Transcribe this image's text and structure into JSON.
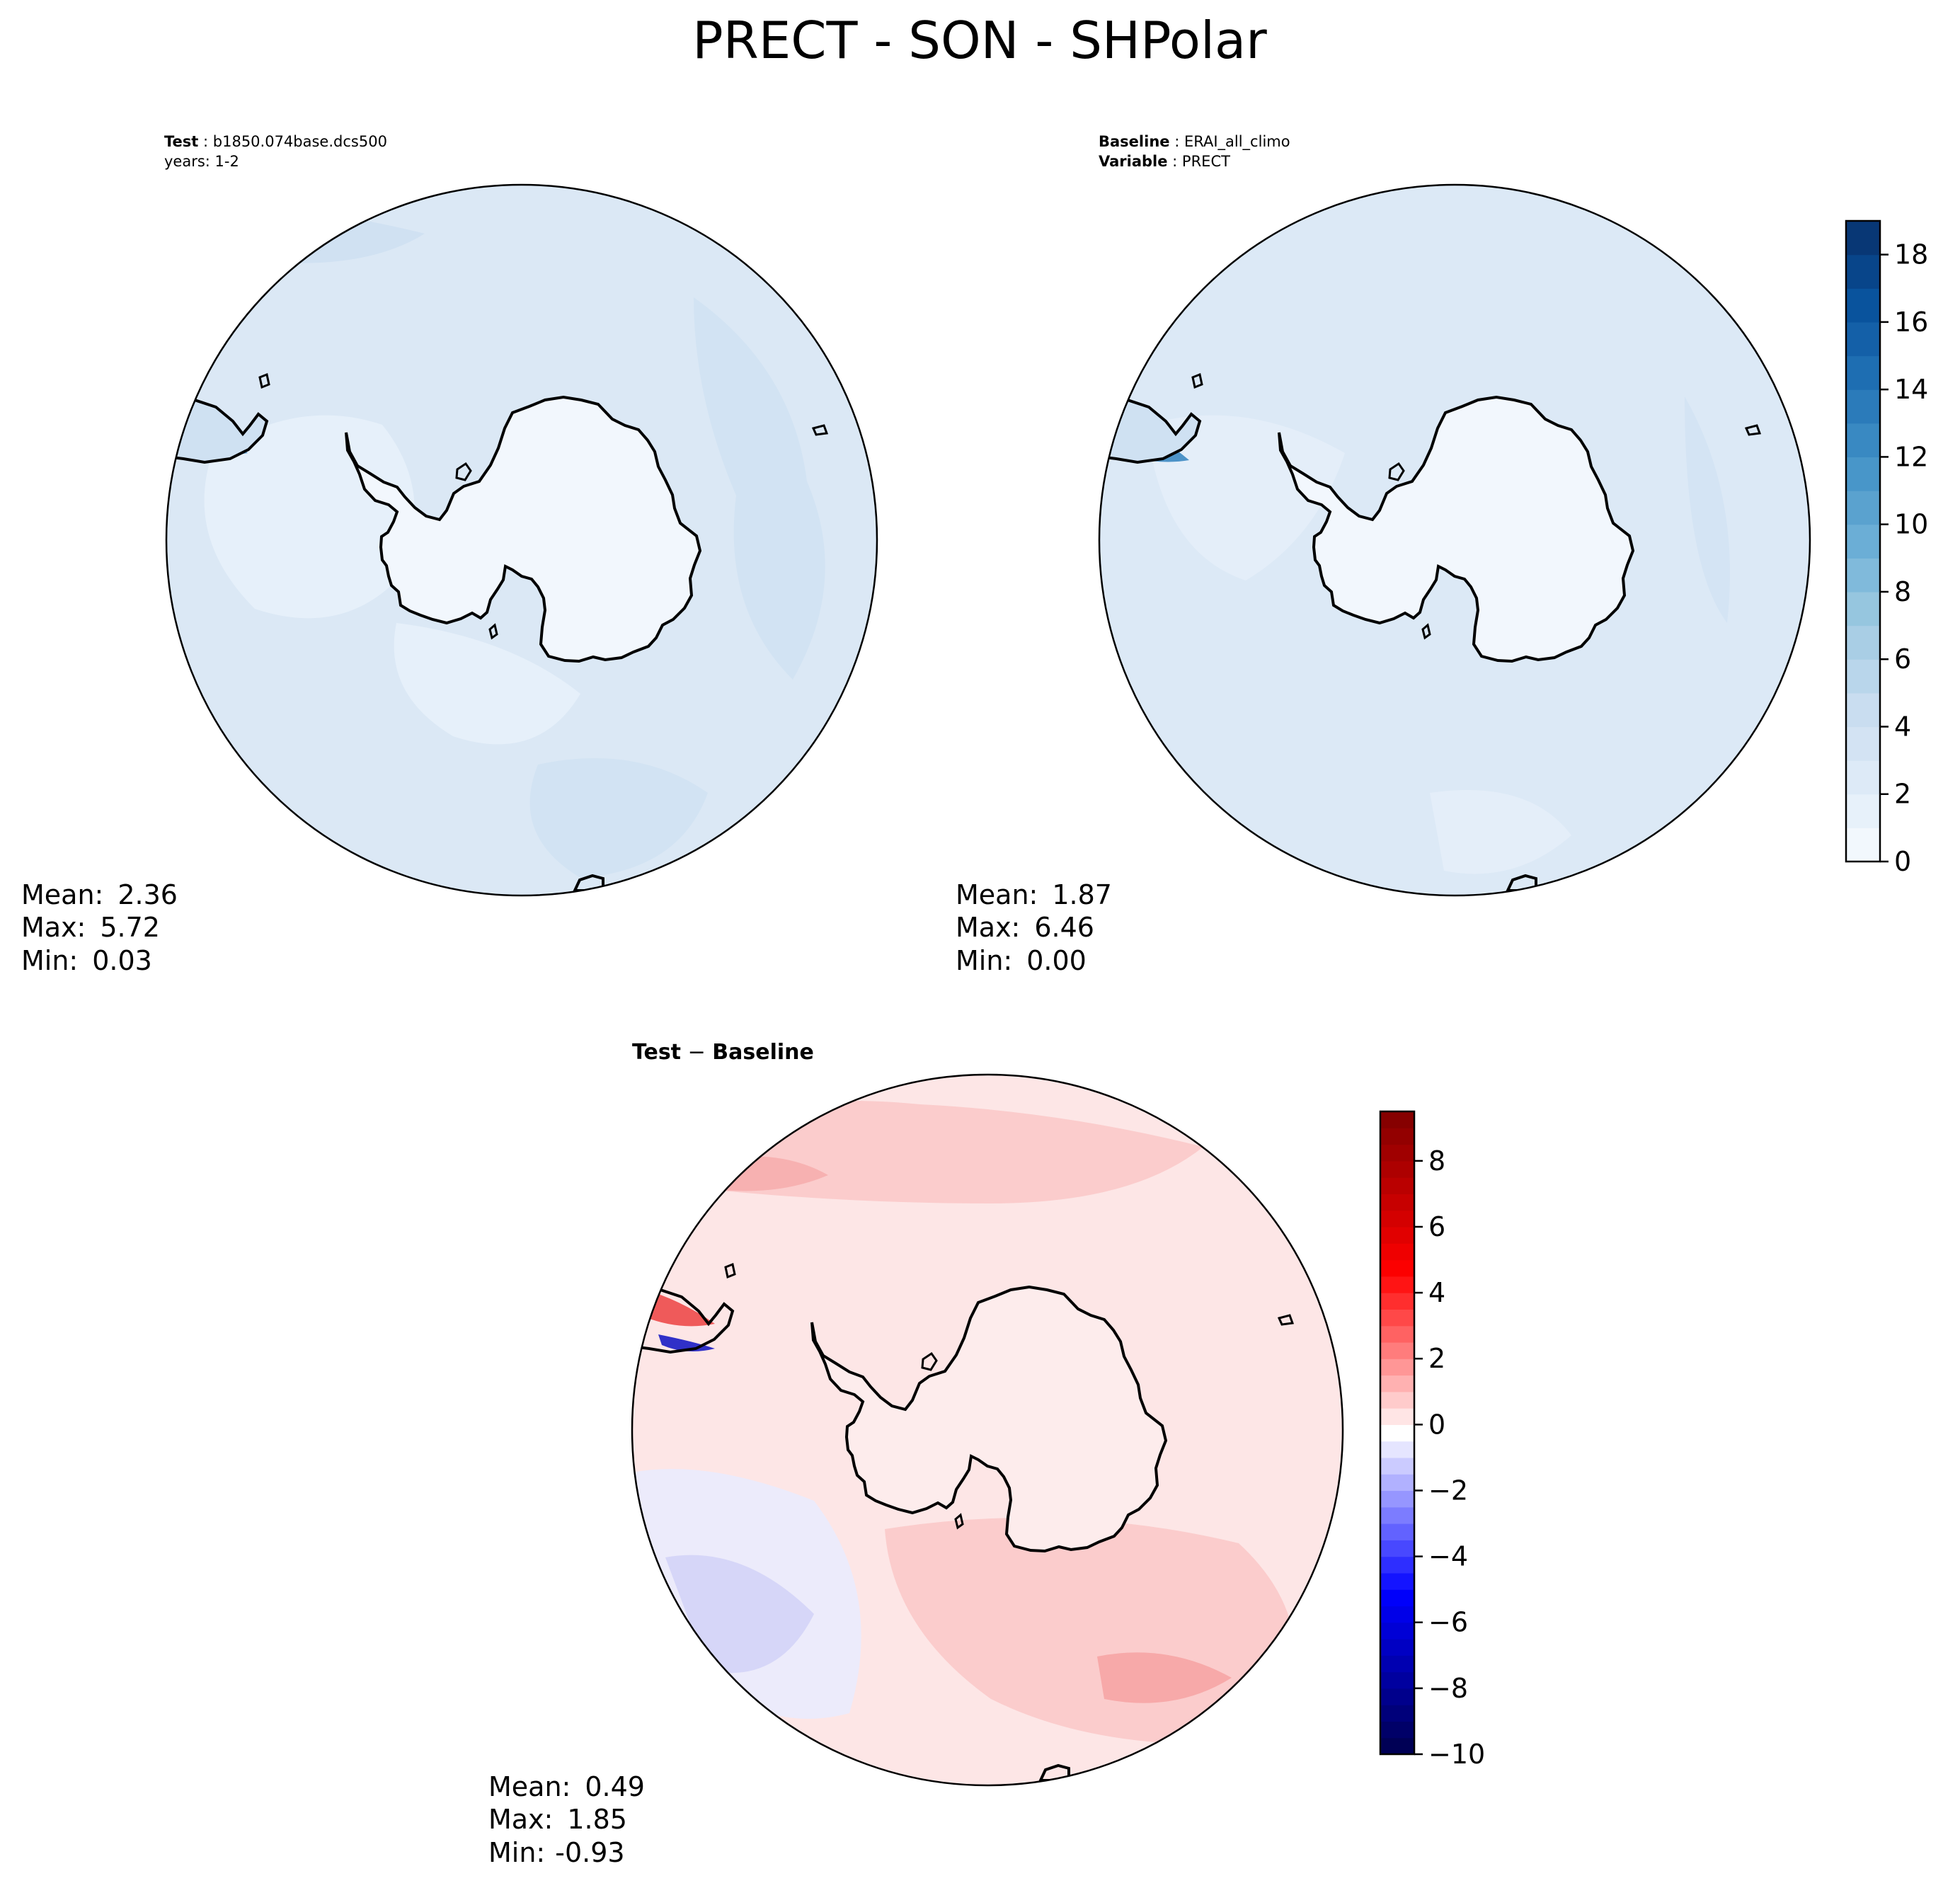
{
  "figure": {
    "title": "PRECT - SON - SHPolar"
  },
  "colors": {
    "map_outline": "#000000",
    "antarctica_fill": "#f2f7fd",
    "ocean_test": "#dbe8f5",
    "ocean_base": "#dce9f6",
    "diff_bg": "#fde6e6"
  },
  "chart_data": [
    {
      "type": "heatmap",
      "panel": "test",
      "projection": "south-polar-stereographic",
      "header": {
        "line1_label": "Test",
        "line1_sep": " : ",
        "line1_value": "b1850.074base.dcs500",
        "line2_text": "years: 1-2"
      },
      "stats": [
        {
          "label": "Mean:",
          "value": "2.36"
        },
        {
          "label": "Max:",
          "value": "5.72"
        },
        {
          "label": "Min:",
          "value": "0.03"
        }
      ],
      "field_range": [
        0.03,
        5.72
      ]
    },
    {
      "type": "heatmap",
      "panel": "baseline",
      "projection": "south-polar-stereographic",
      "header": {
        "line1_label": "Baseline",
        "line1_sep": " : ",
        "line1_value": "ERAI_all_climo",
        "line2_label": "Variable",
        "line2_sep": " : ",
        "line2_value": "PRECT"
      },
      "stats": [
        {
          "label": "Mean:",
          "value": "1.87"
        },
        {
          "label": "Max:",
          "value": "6.46"
        },
        {
          "label": "Min:",
          "value": "0.00"
        }
      ],
      "field_range": [
        0.0,
        6.46
      ],
      "colorbar": {
        "cmap": "Blues",
        "vmin": 0,
        "vmax": 19,
        "n_levels": 19,
        "ticks": [
          0,
          2,
          4,
          6,
          8,
          10,
          12,
          14,
          16,
          18
        ],
        "tick_labels": [
          "0",
          "2",
          "4",
          "6",
          "8",
          "10",
          "12",
          "14",
          "16",
          "18"
        ]
      }
    },
    {
      "type": "heatmap",
      "panel": "difference",
      "projection": "south-polar-stereographic",
      "header": {
        "line1_label": "Test",
        "line1_sep": " − ",
        "line1_value": "Baseline"
      },
      "stats": [
        {
          "label": "Mean:",
          "value": "0.49"
        },
        {
          "label": "Max:",
          "value": "1.85"
        },
        {
          "label": "Min:",
          "value": "-0.93"
        }
      ],
      "field_range": [
        -0.93,
        1.85
      ],
      "colorbar": {
        "cmap": "seismic",
        "vmin": -10,
        "vmax": 9.5,
        "n_levels": 39,
        "ticks": [
          -10,
          -8,
          -6,
          -4,
          -2,
          0,
          2,
          4,
          6,
          8
        ],
        "tick_labels": [
          "−10",
          "−8",
          "−6",
          "−4",
          "−2",
          "0",
          "2",
          "4",
          "6",
          "8"
        ]
      }
    }
  ]
}
